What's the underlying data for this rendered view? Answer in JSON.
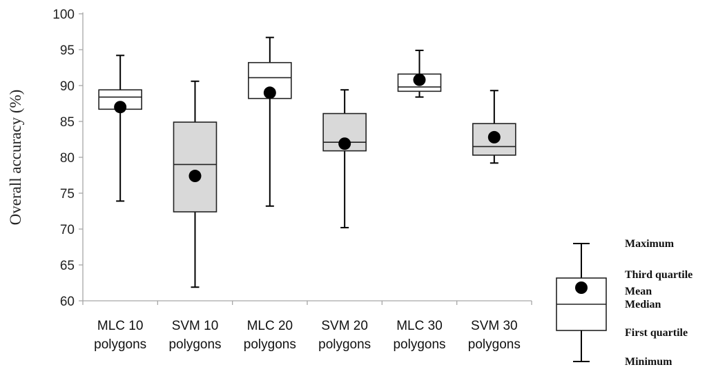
{
  "chart_data": {
    "type": "box",
    "ylabel": "Overall accuracy (%)",
    "xlabel": "",
    "title": "",
    "ylim": [
      60,
      100
    ],
    "yticks": [
      60,
      65,
      70,
      75,
      80,
      85,
      90,
      95,
      100
    ],
    "categories": [
      [
        "MLC 10",
        "polygons"
      ],
      [
        "SVM 10",
        "polygons"
      ],
      [
        "MLC 20",
        "polygons"
      ],
      [
        "SVM 20",
        "polygons"
      ],
      [
        "MLC 30",
        "polygons"
      ],
      [
        "SVM 30",
        "polygons"
      ]
    ],
    "boxes": [
      {
        "min": 73.9,
        "q1": 86.7,
        "median": 88.4,
        "q3": 89.4,
        "max": 94.2,
        "mean": 87.0,
        "fill": "#ffffff"
      },
      {
        "min": 61.9,
        "q1": 72.4,
        "median": 79.0,
        "q3": 84.9,
        "max": 90.6,
        "mean": 77.4,
        "fill": "#d9d9d9"
      },
      {
        "min": 73.2,
        "q1": 88.2,
        "median": 91.1,
        "q3": 93.2,
        "max": 96.7,
        "mean": 89.0,
        "fill": "#ffffff"
      },
      {
        "min": 70.2,
        "q1": 80.9,
        "median": 82.1,
        "q3": 86.1,
        "max": 89.4,
        "mean": 81.9,
        "fill": "#d9d9d9"
      },
      {
        "min": 88.4,
        "q1": 89.2,
        "median": 89.8,
        "q3": 91.6,
        "max": 94.9,
        "mean": 90.8,
        "fill": "#ffffff"
      },
      {
        "min": 79.2,
        "q1": 80.3,
        "median": 81.5,
        "q3": 84.7,
        "max": 89.3,
        "mean": 82.8,
        "fill": "#d9d9d9"
      }
    ],
    "legend": {
      "position": "bottom-right",
      "labels": {
        "max": "Maximum",
        "q3": "Third quartile",
        "mean": "Mean",
        "median": "Median",
        "q1": "First quartile",
        "min": "Minimum"
      }
    }
  }
}
